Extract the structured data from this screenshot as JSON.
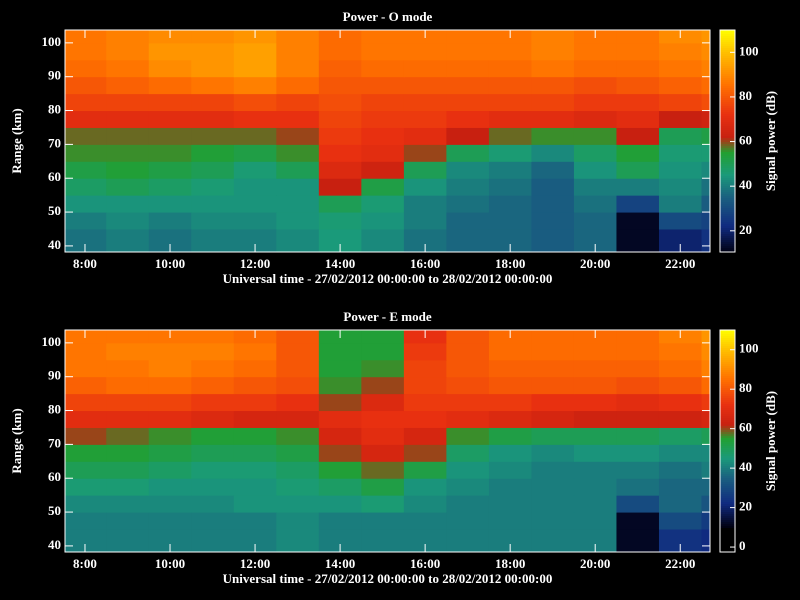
{
  "chart_data": [
    {
      "type": "heatmap",
      "title": "Power - O mode",
      "xlabel": "Universal time - 27/02/2012 00:00:00 to 28/02/2012 00:00:00",
      "ylabel": "Range (km)",
      "colorbar_label": "Signal power (dB)",
      "xbins": [
        7.53,
        8.5,
        9.5,
        10.5,
        11.5,
        12.5,
        13.5,
        14.5,
        15.5,
        16.5,
        17.5,
        18.5,
        19.5,
        20.5,
        21.5,
        22.5,
        22.7
      ],
      "ybins": [
        38.2,
        45,
        50,
        55,
        60,
        65,
        70,
        75,
        80,
        85,
        90,
        95,
        100,
        103.8
      ],
      "values": [
        [
          38,
          40,
          38,
          40,
          40,
          42,
          45,
          42,
          38,
          36,
          36,
          34,
          36,
          12,
          20,
          24
        ],
        [
          40,
          42,
          40,
          42,
          42,
          44,
          46,
          44,
          40,
          36,
          36,
          34,
          36,
          12,
          30,
          28
        ],
        [
          44,
          44,
          44,
          44,
          44,
          44,
          50,
          46,
          40,
          38,
          36,
          34,
          38,
          28,
          40,
          34
        ],
        [
          48,
          50,
          48,
          46,
          44,
          44,
          62,
          52,
          44,
          40,
          38,
          34,
          40,
          40,
          42,
          38
        ],
        [
          52,
          54,
          52,
          50,
          46,
          50,
          68,
          64,
          50,
          42,
          40,
          36,
          44,
          50,
          44,
          42
        ],
        [
          56,
          56,
          56,
          54,
          52,
          56,
          72,
          70,
          60,
          50,
          46,
          42,
          48,
          54,
          46,
          46
        ],
        [
          58,
          58,
          58,
          58,
          58,
          60,
          74,
          72,
          70,
          62,
          58,
          56,
          56,
          62,
          50,
          52
        ],
        [
          70,
          70,
          70,
          70,
          72,
          72,
          76,
          74,
          74,
          72,
          70,
          70,
          68,
          70,
          62,
          64
        ],
        [
          76,
          76,
          76,
          76,
          78,
          76,
          78,
          76,
          76,
          76,
          76,
          76,
          74,
          74,
          76,
          78
        ],
        [
          80,
          82,
          84,
          86,
          88,
          84,
          80,
          80,
          80,
          80,
          80,
          80,
          78,
          80,
          82,
          84
        ],
        [
          84,
          86,
          90,
          92,
          94,
          88,
          82,
          84,
          84,
          84,
          84,
          86,
          84,
          84,
          86,
          88
        ],
        [
          86,
          88,
          92,
          92,
          94,
          88,
          84,
          86,
          86,
          86,
          86,
          88,
          86,
          86,
          88,
          90
        ],
        [
          86,
          88,
          90,
          90,
          92,
          88,
          84,
          86,
          86,
          86,
          86,
          88,
          86,
          86,
          90,
          92
        ]
      ],
      "xlim": [
        7.53,
        22.7
      ],
      "ylim": [
        38.2,
        103.8
      ],
      "xticks": [
        {
          "value": 8,
          "label": "8:00"
        },
        {
          "value": 10,
          "label": "10:00"
        },
        {
          "value": 12,
          "label": "12:00"
        },
        {
          "value": 14,
          "label": "14:00"
        },
        {
          "value": 16,
          "label": "16:00"
        },
        {
          "value": 18,
          "label": "18:00"
        },
        {
          "value": 20,
          "label": "20:00"
        },
        {
          "value": 22,
          "label": "22:00"
        }
      ],
      "yticks": [
        40,
        50,
        60,
        70,
        80,
        90,
        100
      ],
      "clim": [
        10.5,
        110
      ],
      "cticks": [
        20,
        40,
        60,
        80,
        100
      ]
    },
    {
      "type": "heatmap",
      "title": "Power - E mode",
      "xlabel": "Universal time - 27/02/2012 00:00:00 to 28/02/2012 00:00:00",
      "ylabel": "Range (km)",
      "colorbar_label": "Signal power (dB)",
      "xbins": [
        7.53,
        8.5,
        9.5,
        10.5,
        11.5,
        12.5,
        13.5,
        14.5,
        15.5,
        16.5,
        17.5,
        18.5,
        19.5,
        20.5,
        21.5,
        22.5,
        22.7
      ],
      "ybins": [
        38.2,
        45,
        50,
        55,
        60,
        65,
        70,
        75,
        80,
        85,
        90,
        95,
        100,
        103.8
      ],
      "values": [
        [
          40,
          40,
          40,
          40,
          40,
          42,
          40,
          40,
          40,
          40,
          40,
          40,
          40,
          12,
          24,
          22
        ],
        [
          40,
          40,
          40,
          40,
          40,
          42,
          40,
          40,
          40,
          40,
          40,
          40,
          40,
          12,
          30,
          26
        ],
        [
          42,
          42,
          42,
          42,
          44,
          44,
          44,
          46,
          42,
          40,
          40,
          40,
          40,
          30,
          36,
          32
        ],
        [
          46,
          46,
          44,
          44,
          44,
          46,
          48,
          52,
          44,
          42,
          40,
          40,
          40,
          38,
          36,
          36
        ],
        [
          50,
          50,
          48,
          46,
          46,
          48,
          54,
          58,
          52,
          44,
          42,
          40,
          40,
          40,
          38,
          40
        ],
        [
          54,
          54,
          52,
          50,
          50,
          52,
          60,
          66,
          60,
          48,
          44,
          42,
          44,
          44,
          42,
          42
        ],
        [
          60,
          58,
          56,
          54,
          54,
          56,
          66,
          70,
          66,
          56,
          52,
          50,
          50,
          50,
          48,
          50
        ],
        [
          70,
          70,
          70,
          68,
          66,
          66,
          70,
          72,
          72,
          70,
          68,
          66,
          64,
          64,
          64,
          66
        ],
        [
          76,
          76,
          76,
          74,
          74,
          72,
          60,
          68,
          74,
          74,
          74,
          72,
          72,
          70,
          72,
          74
        ],
        [
          82,
          84,
          84,
          82,
          80,
          78,
          56,
          60,
          76,
          78,
          80,
          80,
          80,
          78,
          80,
          84
        ],
        [
          86,
          86,
          88,
          86,
          84,
          80,
          54,
          56,
          76,
          80,
          82,
          82,
          82,
          82,
          84,
          88
        ],
        [
          86,
          88,
          88,
          88,
          86,
          80,
          54,
          54,
          74,
          80,
          84,
          84,
          84,
          84,
          86,
          90
        ],
        [
          86,
          86,
          86,
          86,
          84,
          80,
          54,
          54,
          72,
          80,
          84,
          84,
          84,
          84,
          88,
          92
        ]
      ],
      "xlim": [
        7.53,
        22.7
      ],
      "ylim": [
        38.2,
        103.8
      ],
      "xticks": [
        {
          "value": 8,
          "label": "8:00"
        },
        {
          "value": 10,
          "label": "10:00"
        },
        {
          "value": 12,
          "label": "12:00"
        },
        {
          "value": 14,
          "label": "14:00"
        },
        {
          "value": 16,
          "label": "16:00"
        },
        {
          "value": 18,
          "label": "18:00"
        },
        {
          "value": 20,
          "label": "20:00"
        },
        {
          "value": 22,
          "label": "22:00"
        }
      ],
      "yticks": [
        40,
        50,
        60,
        70,
        80,
        90,
        100
      ],
      "clim": [
        -2.5,
        110
      ],
      "cticks": [
        0,
        20,
        40,
        60,
        80,
        100
      ]
    }
  ]
}
